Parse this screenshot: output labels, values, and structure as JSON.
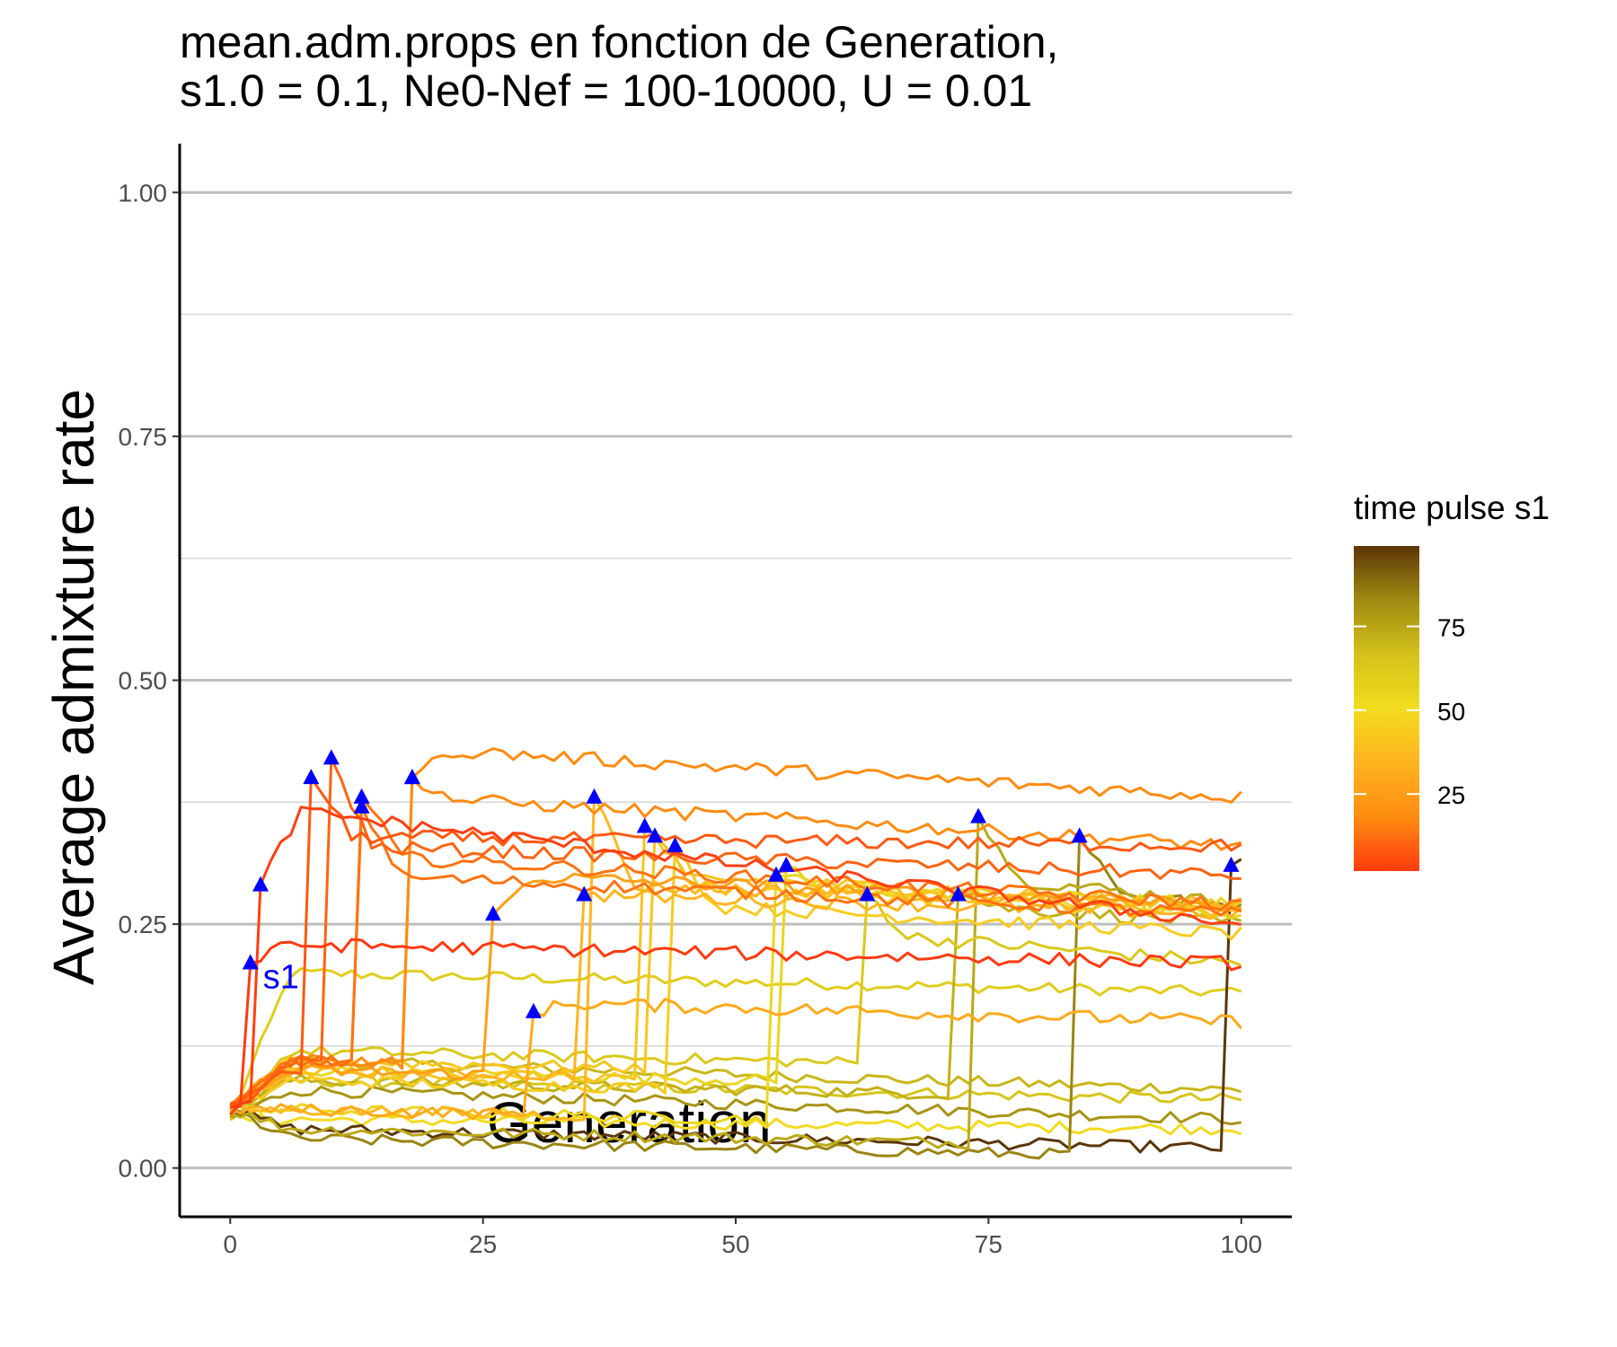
{
  "chart_data": {
    "type": "line",
    "title": "mean.adm.props en fonction de Generation,",
    "subtitle": "s1.0 = 0.1, Ne0-Nef = 100-10000, U = 0.01",
    "xlabel": "Generation",
    "ylabel": "Average admixture rate",
    "xlim": [
      -5,
      105
    ],
    "ylim": [
      -0.05,
      1.05
    ],
    "x_ticks": [
      "0",
      "25",
      "50",
      "75",
      "100"
    ],
    "y_ticks": [
      "0.00",
      "0.25",
      "0.50",
      "0.75",
      "1.00"
    ],
    "grid": "horizontal",
    "legend": {
      "title": "time pulse s1",
      "placement": "right",
      "type": "colorbar",
      "range": [
        2,
        99
      ],
      "ticks": [
        "25",
        "50",
        "75"
      ],
      "colors": [
        "#ff3a10",
        "#ff8c10",
        "#ffb31f",
        "#f2dc1f",
        "#d4c21a",
        "#a08a12",
        "#5c3608"
      ]
    },
    "annotation": {
      "text": "s1",
      "color": "#0000ff"
    },
    "marker_color": "#0000ff",
    "series": [
      {
        "pulse": 2,
        "peak": 0.21,
        "plateau": 0.23,
        "final": 0.21,
        "pre": 0.1
      },
      {
        "pulse": 3,
        "peak": 0.29,
        "plateau": 0.37,
        "final": 0.25,
        "pre": 0.08
      },
      {
        "pulse": 8,
        "peak": 0.4,
        "plateau": 0.34,
        "final": 0.33,
        "pre": 0.1
      },
      {
        "pulse": 10,
        "peak": 0.42,
        "plateau": 0.33,
        "final": 0.3,
        "pre": 0.11
      },
      {
        "pulse": 13,
        "peak": 0.38,
        "plateau": 0.32,
        "final": 0.27,
        "pre": 0.11
      },
      {
        "pulse": 13,
        "peak": 0.37,
        "plateau": 0.3,
        "final": 0.26,
        "pre": 0.11
      },
      {
        "pulse": 18,
        "peak": 0.4,
        "plateau": 0.43,
        "final": 0.38,
        "pre": 0.11
      },
      {
        "pulse": 18,
        "peak": 0.4,
        "plateau": 0.38,
        "final": 0.33,
        "pre": 0.11
      },
      {
        "pulse": 26,
        "peak": 0.26,
        "plateau": 0.3,
        "final": 0.27,
        "pre": 0.1
      },
      {
        "pulse": 30,
        "peak": 0.16,
        "plateau": 0.17,
        "final": 0.15,
        "pre": 0.06
      },
      {
        "pulse": 35,
        "peak": 0.28,
        "plateau": 0.28,
        "final": 0.26,
        "pre": 0.1
      },
      {
        "pulse": 36,
        "peak": 0.38,
        "plateau": 0.29,
        "final": 0.27,
        "pre": 0.06
      },
      {
        "pulse": 41,
        "peak": 0.35,
        "plateau": 0.3,
        "final": 0.27,
        "pre": 0.1
      },
      {
        "pulse": 42,
        "peak": 0.34,
        "plateau": 0.29,
        "final": 0.26,
        "pre": 0.11
      },
      {
        "pulse": 44,
        "peak": 0.33,
        "plateau": 0.27,
        "final": 0.24,
        "pre": 0.09
      },
      {
        "pulse": 54,
        "peak": 0.3,
        "plateau": 0.29,
        "final": 0.27,
        "pre": 0.06
      },
      {
        "pulse": 55,
        "peak": 0.31,
        "plateau": 0.29,
        "final": 0.26,
        "pre": 0.1
      },
      {
        "pulse": 63,
        "peak": 0.28,
        "plateau": 0.24,
        "final": 0.21,
        "pre": 0.12
      },
      {
        "pulse": 72,
        "peak": 0.28,
        "plateau": 0.27,
        "final": 0.25,
        "pre": 0.09
      },
      {
        "pulse": 74,
        "peak": 0.36,
        "plateau": 0.3,
        "final": 0.27,
        "pre": 0.04
      },
      {
        "pulse": 84,
        "peak": 0.34,
        "plateau": 0.28,
        "final": 0.27,
        "pre": 0.03
      },
      {
        "pulse": 99,
        "peak": 0.31,
        "plateau": 0.31,
        "final": 0.31,
        "pre": 0.04
      }
    ],
    "unpulsed_series": [
      {
        "pulse": 60,
        "level": 0.2,
        "final": 0.18
      },
      {
        "pulse": 70,
        "level": 0.11,
        "final": 0.08
      },
      {
        "pulse": 65,
        "level": 0.09,
        "final": 0.07
      },
      {
        "pulse": 80,
        "level": 0.08,
        "final": 0.05
      },
      {
        "pulse": 50,
        "level": 0.05,
        "final": 0.04
      }
    ]
  }
}
